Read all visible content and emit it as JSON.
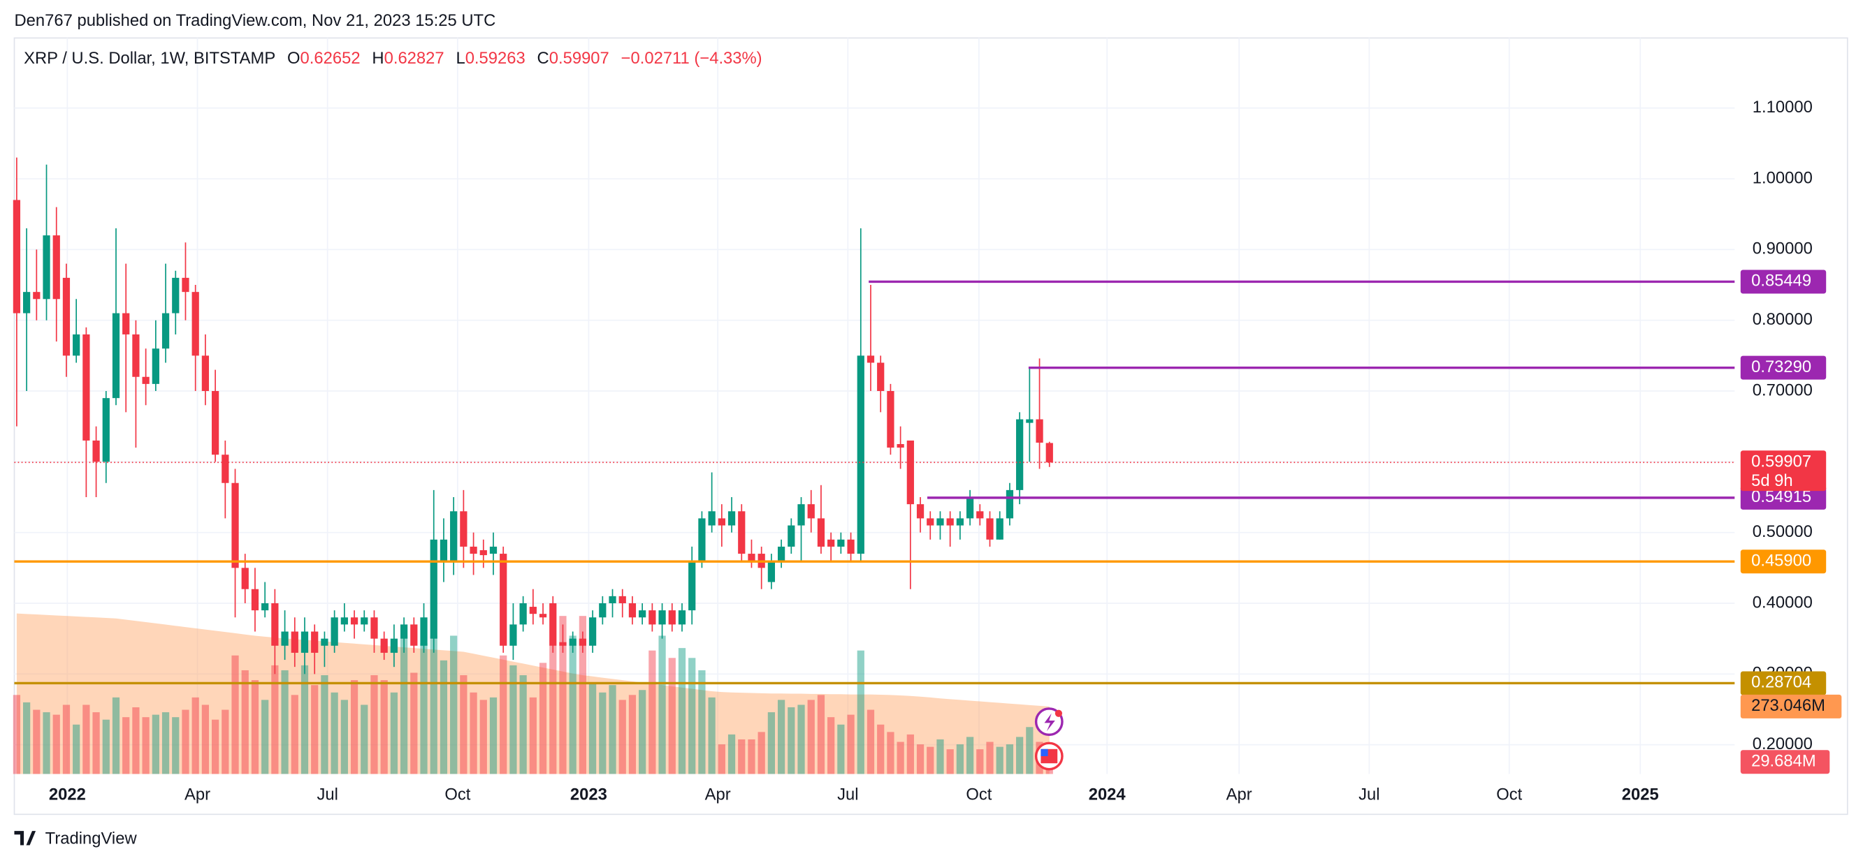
{
  "header": "Den767 published on TradingView.com, Nov 21, 2023 15:25 UTC",
  "footer": "TradingView",
  "chart_data": {
    "type": "candlestick",
    "legend": {
      "symbol": "XRP / U.S. Dollar, 1W, BITSTAMP",
      "open_label": "O",
      "open": 0.62652,
      "high_label": "H",
      "high": 0.62827,
      "low_label": "L",
      "low": 0.59263,
      "close_label": "C",
      "close": 0.59907,
      "change": {
        "value": -0.02711,
        "label": "−0.02711"
      },
      "change_pct": {
        "value": -4.33,
        "label": "(−4.33%)"
      }
    },
    "up_color": "#089981",
    "down_color": "#f23645",
    "candles": [
      [
        0.97,
        1.03,
        0.65,
        0.81
      ],
      [
        0.81,
        0.93,
        0.7,
        0.84
      ],
      [
        0.84,
        0.9,
        0.8,
        0.83
      ],
      [
        0.83,
        1.02,
        0.8,
        0.92
      ],
      [
        0.92,
        0.96,
        0.77,
        0.83
      ],
      [
        0.86,
        0.88,
        0.72,
        0.75
      ],
      [
        0.75,
        0.83,
        0.74,
        0.78
      ],
      [
        0.78,
        0.79,
        0.55,
        0.63
      ],
      [
        0.63,
        0.65,
        0.55,
        0.6
      ],
      [
        0.6,
        0.7,
        0.57,
        0.69
      ],
      [
        0.69,
        0.93,
        0.68,
        0.81
      ],
      [
        0.81,
        0.88,
        0.67,
        0.78
      ],
      [
        0.78,
        0.8,
        0.62,
        0.72
      ],
      [
        0.72,
        0.76,
        0.68,
        0.71
      ],
      [
        0.71,
        0.8,
        0.7,
        0.76
      ],
      [
        0.76,
        0.88,
        0.74,
        0.81
      ],
      [
        0.81,
        0.87,
        0.78,
        0.86
      ],
      [
        0.86,
        0.91,
        0.8,
        0.84
      ],
      [
        0.84,
        0.85,
        0.7,
        0.75
      ],
      [
        0.75,
        0.78,
        0.68,
        0.7
      ],
      [
        0.7,
        0.73,
        0.6,
        0.61
      ],
      [
        0.61,
        0.63,
        0.52,
        0.57
      ],
      [
        0.57,
        0.59,
        0.38,
        0.45
      ],
      [
        0.45,
        0.47,
        0.4,
        0.42
      ],
      [
        0.42,
        0.45,
        0.36,
        0.39
      ],
      [
        0.39,
        0.43,
        0.38,
        0.4
      ],
      [
        0.4,
        0.42,
        0.3,
        0.34
      ],
      [
        0.34,
        0.39,
        0.32,
        0.36
      ],
      [
        0.36,
        0.38,
        0.31,
        0.33
      ],
      [
        0.33,
        0.38,
        0.3,
        0.36
      ],
      [
        0.36,
        0.37,
        0.3,
        0.33
      ],
      [
        0.34,
        0.36,
        0.31,
        0.35
      ],
      [
        0.34,
        0.39,
        0.33,
        0.38
      ],
      [
        0.37,
        0.4,
        0.36,
        0.38
      ],
      [
        0.38,
        0.39,
        0.35,
        0.37
      ],
      [
        0.37,
        0.39,
        0.36,
        0.38
      ],
      [
        0.38,
        0.39,
        0.33,
        0.35
      ],
      [
        0.35,
        0.36,
        0.32,
        0.33
      ],
      [
        0.33,
        0.37,
        0.31,
        0.35
      ],
      [
        0.35,
        0.38,
        0.33,
        0.37
      ],
      [
        0.37,
        0.38,
        0.33,
        0.34
      ],
      [
        0.34,
        0.4,
        0.33,
        0.38
      ],
      [
        0.35,
        0.56,
        0.33,
        0.49
      ],
      [
        0.46,
        0.52,
        0.43,
        0.49
      ],
      [
        0.46,
        0.55,
        0.44,
        0.53
      ],
      [
        0.53,
        0.56,
        0.45,
        0.48
      ],
      [
        0.48,
        0.5,
        0.44,
        0.47
      ],
      [
        0.475,
        0.49,
        0.45,
        0.468
      ],
      [
        0.47,
        0.5,
        0.44,
        0.48
      ],
      [
        0.47,
        0.48,
        0.33,
        0.34
      ],
      [
        0.34,
        0.4,
        0.32,
        0.37
      ],
      [
        0.37,
        0.41,
        0.36,
        0.4
      ],
      [
        0.395,
        0.42,
        0.37,
        0.385
      ],
      [
        0.385,
        0.4,
        0.37,
        0.38
      ],
      [
        0.4,
        0.41,
        0.33,
        0.34
      ],
      [
        0.345,
        0.37,
        0.33,
        0.34
      ],
      [
        0.34,
        0.36,
        0.33,
        0.35
      ],
      [
        0.35,
        0.36,
        0.33,
        0.34
      ],
      [
        0.34,
        0.39,
        0.33,
        0.38
      ],
      [
        0.38,
        0.41,
        0.37,
        0.4
      ],
      [
        0.4,
        0.42,
        0.38,
        0.41
      ],
      [
        0.41,
        0.42,
        0.38,
        0.4
      ],
      [
        0.4,
        0.41,
        0.37,
        0.38
      ],
      [
        0.38,
        0.4,
        0.37,
        0.39
      ],
      [
        0.39,
        0.4,
        0.36,
        0.37
      ],
      [
        0.37,
        0.4,
        0.35,
        0.39
      ],
      [
        0.39,
        0.4,
        0.36,
        0.37
      ],
      [
        0.37,
        0.4,
        0.36,
        0.39
      ],
      [
        0.39,
        0.48,
        0.37,
        0.46
      ],
      [
        0.46,
        0.53,
        0.45,
        0.52
      ],
      [
        0.51,
        0.585,
        0.5,
        0.53
      ],
      [
        0.52,
        0.54,
        0.48,
        0.51
      ],
      [
        0.51,
        0.55,
        0.5,
        0.53
      ],
      [
        0.53,
        0.54,
        0.46,
        0.47
      ],
      [
        0.47,
        0.49,
        0.45,
        0.46
      ],
      [
        0.47,
        0.48,
        0.42,
        0.45
      ],
      [
        0.43,
        0.47,
        0.42,
        0.46
      ],
      [
        0.46,
        0.49,
        0.45,
        0.48
      ],
      [
        0.48,
        0.52,
        0.47,
        0.51
      ],
      [
        0.51,
        0.55,
        0.46,
        0.54
      ],
      [
        0.54,
        0.56,
        0.5,
        0.52
      ],
      [
        0.52,
        0.567,
        0.47,
        0.48
      ],
      [
        0.49,
        0.5,
        0.46,
        0.48
      ],
      [
        0.48,
        0.5,
        0.47,
        0.49
      ],
      [
        0.49,
        0.5,
        0.46,
        0.47
      ],
      [
        0.47,
        0.93,
        0.46,
        0.75
      ],
      [
        0.75,
        0.85,
        0.7,
        0.74
      ],
      [
        0.74,
        0.75,
        0.67,
        0.7
      ],
      [
        0.7,
        0.71,
        0.61,
        0.62
      ],
      [
        0.625,
        0.65,
        0.59,
        0.62
      ],
      [
        0.63,
        0.63,
        0.42,
        0.54
      ],
      [
        0.54,
        0.55,
        0.5,
        0.52
      ],
      [
        0.52,
        0.53,
        0.49,
        0.51
      ],
      [
        0.51,
        0.53,
        0.49,
        0.52
      ],
      [
        0.52,
        0.53,
        0.48,
        0.51
      ],
      [
        0.51,
        0.53,
        0.49,
        0.52
      ],
      [
        0.52,
        0.56,
        0.51,
        0.55
      ],
      [
        0.53,
        0.54,
        0.51,
        0.52
      ],
      [
        0.52,
        0.53,
        0.48,
        0.49
      ],
      [
        0.49,
        0.53,
        0.49,
        0.52
      ],
      [
        0.52,
        0.57,
        0.51,
        0.56
      ],
      [
        0.56,
        0.67,
        0.54,
        0.66
      ],
      [
        0.655,
        0.733,
        0.6,
        0.66
      ],
      [
        0.66,
        0.746,
        0.59,
        0.627
      ],
      [
        0.62652,
        0.62827,
        0.59263,
        0.59907
      ]
    ],
    "volumes": [
      320,
      290,
      260,
      250,
      240,
      280,
      200,
      280,
      250,
      220,
      310,
      230,
      270,
      230,
      240,
      250,
      230,
      260,
      310,
      280,
      220,
      260,
      480,
      420,
      380,
      300,
      440,
      420,
      320,
      440,
      360,
      400,
      330,
      300,
      380,
      280,
      400,
      380,
      330,
      560,
      410,
      530,
      560,
      460,
      560,
      400,
      330,
      300,
      310,
      480,
      440,
      400,
      310,
      450,
      520,
      640,
      560,
      640,
      370,
      330,
      360,
      300,
      320,
      340,
      500,
      560,
      470,
      510,
      470,
      420,
      310,
      120,
      160,
      140,
      140,
      170,
      250,
      300,
      270,
      280,
      300,
      320,
      230,
      200,
      240,
      500,
      260,
      200,
      170,
      130,
      160,
      120,
      110,
      140,
      100,
      120,
      150,
      100,
      130,
      110,
      120,
      150,
      190,
      130,
      29.684
    ],
    "volume_label": "29.684M",
    "volume_ma": [
      650,
      648,
      646,
      644,
      642,
      640,
      638,
      636,
      634,
      632,
      630,
      625,
      620,
      615,
      610,
      605,
      600,
      595,
      590,
      585,
      580,
      575,
      570,
      565,
      560,
      556,
      552,
      549,
      546,
      543,
      540,
      537,
      534,
      531,
      528,
      525,
      522,
      519,
      516,
      513,
      510,
      507,
      504,
      501,
      498,
      495,
      487,
      479,
      471,
      463,
      455,
      447,
      439,
      431,
      423,
      415,
      407,
      400,
      395,
      390,
      385,
      380,
      375,
      370,
      365,
      360,
      355,
      350,
      345,
      340,
      335,
      332,
      330,
      329,
      328,
      327,
      326,
      326,
      325,
      325,
      324,
      324,
      323,
      323,
      322,
      322,
      322,
      321,
      320,
      318,
      316,
      313,
      310,
      306,
      303,
      300,
      297,
      294,
      291,
      288,
      285,
      282,
      279,
      276,
      273.046
    ],
    "volume_ma_label": "273.046M",
    "volume_ma_color": "#ff9850",
    "vlim": [
      0,
      1000
    ],
    "ylim": [
      0.1587,
      1.199
    ],
    "yticks": [
      {
        "value": 0.2,
        "label": "0.20000"
      },
      {
        "value": 0.3,
        "label": "0.30000"
      },
      {
        "value": 0.4,
        "label": "0.40000"
      },
      {
        "value": 0.5,
        "label": "0.50000"
      },
      {
        "value": 0.6,
        "label": "0.60000"
      },
      {
        "value": 0.7,
        "label": "0.70000"
      },
      {
        "value": 0.8,
        "label": "0.80000"
      },
      {
        "value": 0.9,
        "label": "0.90000"
      },
      {
        "value": 1.0,
        "label": "1.00000"
      },
      {
        "value": 1.1,
        "label": "1.10000"
      }
    ],
    "xlim": [
      -0.24,
      173
    ],
    "xticks": [
      {
        "value": 5.1,
        "label": "2022"
      },
      {
        "value": 18.2,
        "label": "Apr"
      },
      {
        "value": 31.3,
        "label": "Jul"
      },
      {
        "value": 44.4,
        "label": "Oct"
      },
      {
        "value": 57.6,
        "label": "2023"
      },
      {
        "value": 70.6,
        "label": "Apr"
      },
      {
        "value": 83.7,
        "label": "Jul"
      },
      {
        "value": 96.9,
        "label": "Oct"
      },
      {
        "value": 109.8,
        "label": "2024"
      },
      {
        "value": 123.1,
        "label": "Apr"
      },
      {
        "value": 136.2,
        "label": "Jul"
      },
      {
        "value": 150.3,
        "label": "Oct"
      },
      {
        "value": 163.5,
        "label": "2025"
      }
    ],
    "grid": true,
    "levels": [
      {
        "value": 0.85449,
        "label": "0.85449",
        "color": "#9c27b0",
        "from_x": 85.8
      },
      {
        "value": 0.7329,
        "label": "0.73290",
        "color": "#9c27b0",
        "from_x": 101.9
      },
      {
        "value": 0.54915,
        "label": "0.54915",
        "color": "#9c27b0",
        "from_x": 91.7
      },
      {
        "value": 0.459,
        "label": "0.45900",
        "color": "#ff9800",
        "from_x": -0.24
      },
      {
        "value": 0.28704,
        "label": "0.28704",
        "color": "#c49000",
        "from_x": -0.24
      }
    ],
    "last_price": {
      "value": 0.59907,
      "label": "0.59907",
      "countdown": "5d 9h",
      "color": "#f23645"
    }
  }
}
